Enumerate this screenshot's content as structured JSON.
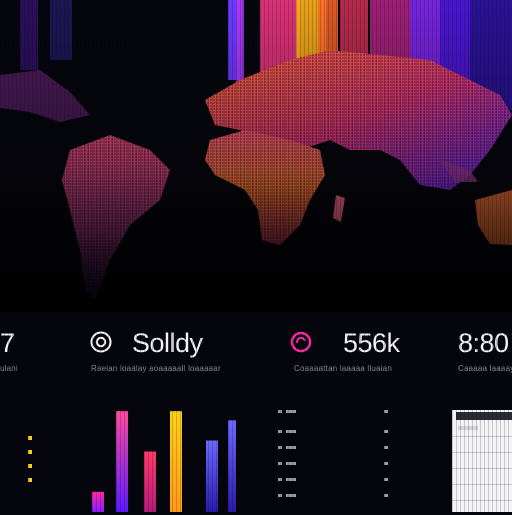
{
  "stats": [
    {
      "value": "7",
      "caption": "ulani"
    },
    {
      "value": "Solldy",
      "caption": "Raeian loaalay aoaaaaall loaaaaar"
    },
    {
      "value": "556k",
      "caption": "Coaaaattan laaaaa lluaian"
    },
    {
      "value": "8:80",
      "caption": "Caaaaa laaaay"
    }
  ],
  "icons": {
    "stat_1": "target-ring-icon",
    "stat_2": "ring-icon"
  },
  "colors": {
    "background": "#05050d",
    "magenta": "#ff2aa5",
    "purple": "#6a1aff",
    "orange": "#ff7a2a",
    "yellow": "#ffd21a",
    "blue": "#2b34ff"
  },
  "chart_data": {
    "type": "bar",
    "categories": [
      "",
      "",
      "",
      "",
      "",
      ""
    ],
    "values": [
      22,
      110,
      66,
      110,
      78,
      100
    ],
    "ylim": [
      0,
      120
    ]
  }
}
